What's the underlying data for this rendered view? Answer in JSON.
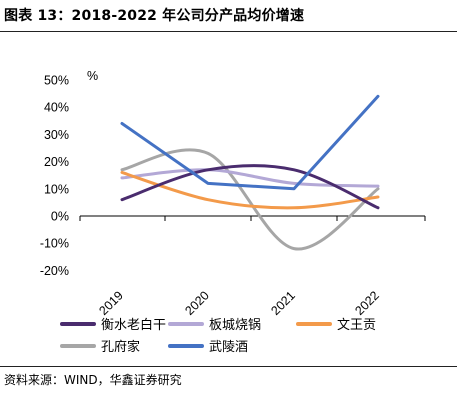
{
  "header": {
    "title": "图表 13：2018-2022 年公司分产品均价增速"
  },
  "footer": {
    "source": "资料来源：WIND，华鑫证券研究"
  },
  "chart_data": {
    "type": "line",
    "unit_label": "%",
    "categories": [
      "2019",
      "2020",
      "2021",
      "2022"
    ],
    "ylim": [
      -20,
      50
    ],
    "yticks": [
      "50%",
      "40%",
      "30%",
      "20%",
      "10%",
      "0%",
      "-10%",
      "-20%"
    ],
    "grid": false,
    "legend_position": "bottom",
    "series": [
      {
        "name": "衡水老白干",
        "color": "#4a2c6e",
        "values": [
          6,
          17,
          17,
          3
        ]
      },
      {
        "name": "板城烧锅",
        "color": "#b3a8d6",
        "values": [
          14,
          17,
          12,
          11
        ]
      },
      {
        "name": "文王贡",
        "color": "#f39a4a",
        "values": [
          16,
          6,
          3,
          7
        ]
      },
      {
        "name": "孔府家",
        "color": "#a6a6a6",
        "values": [
          17,
          23,
          -12,
          10
        ]
      },
      {
        "name": "武陵酒",
        "color": "#4472c4",
        "values": [
          34,
          12,
          10,
          44
        ]
      }
    ]
  }
}
